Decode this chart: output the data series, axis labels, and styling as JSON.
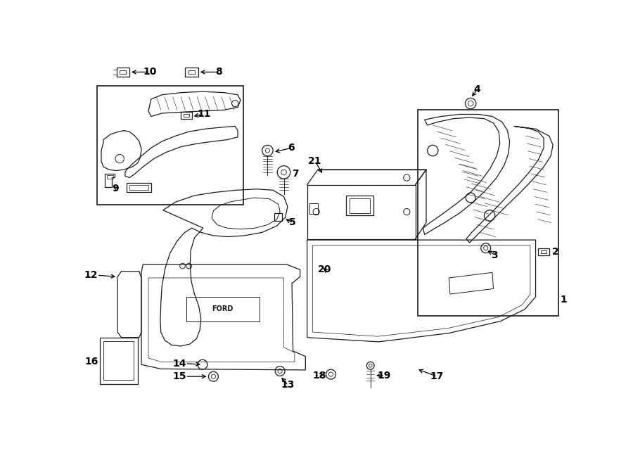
{
  "bg_color": "#ffffff",
  "line_color": "#1a1a1a",
  "fig_width": 9.0,
  "fig_height": 6.61,
  "dpi": 100,
  "lw": 0.9,
  "lw2": 1.2
}
